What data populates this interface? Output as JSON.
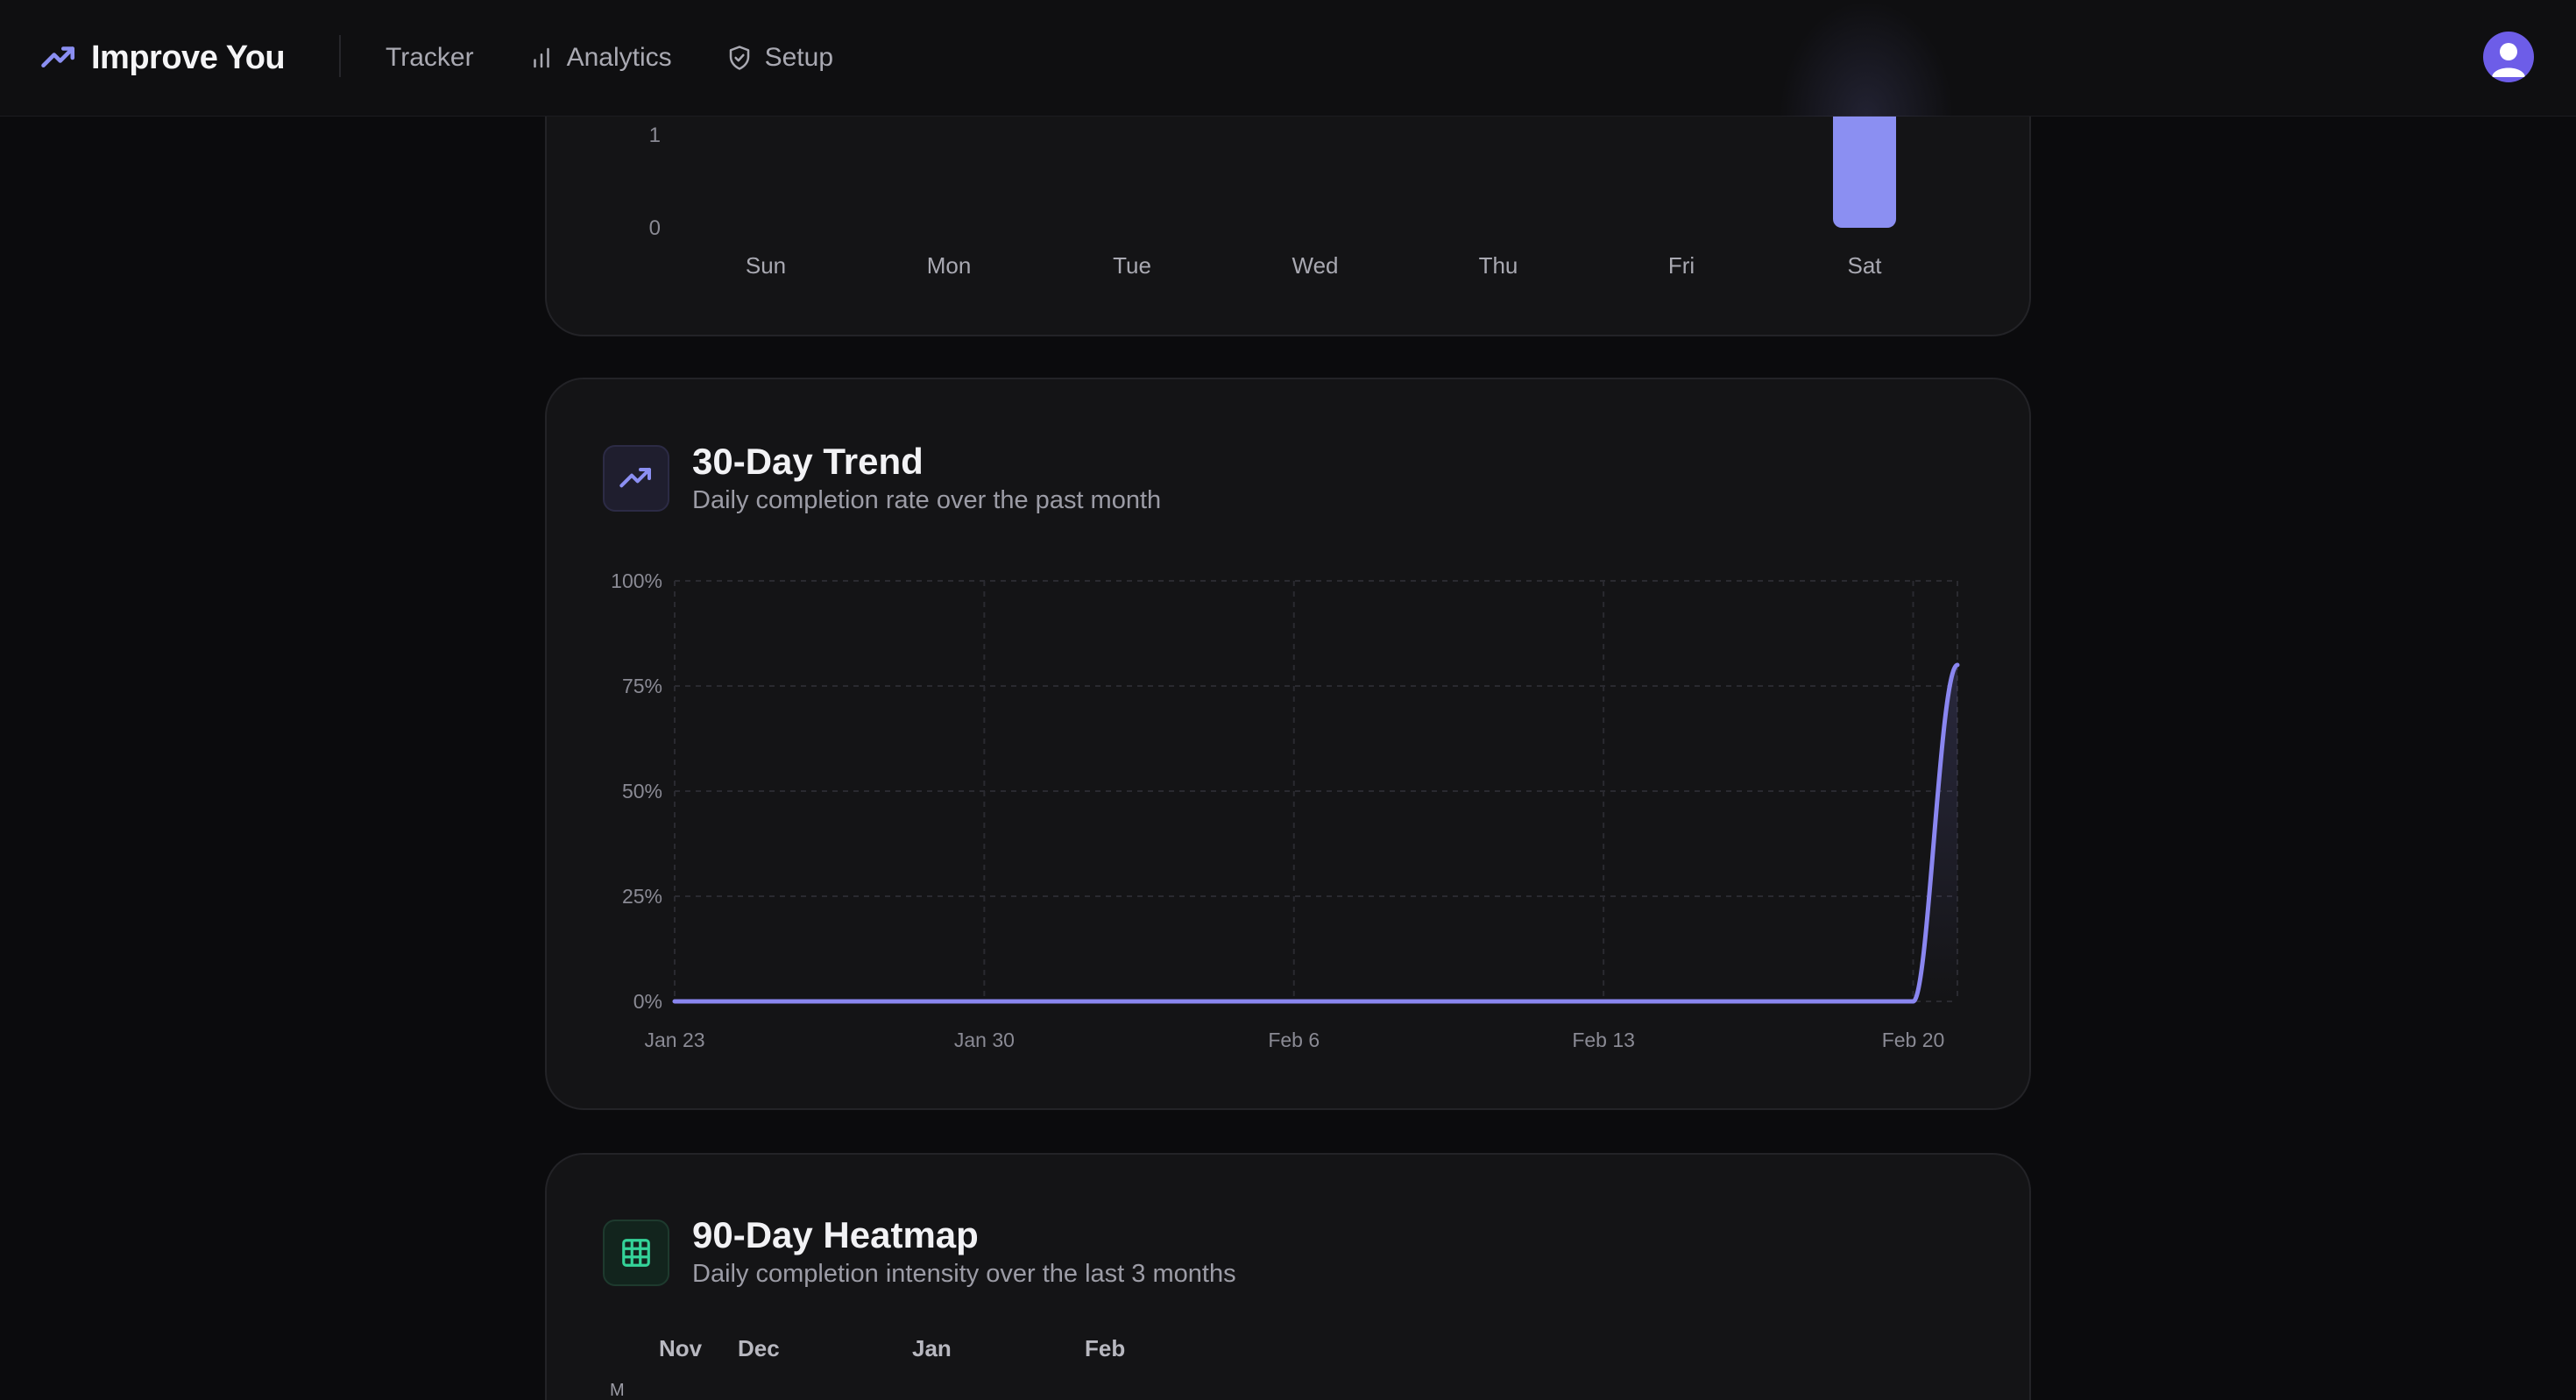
{
  "header": {
    "brand_name": "Improve You",
    "nav": [
      {
        "label": "Tracker",
        "icon": "none"
      },
      {
        "label": "Analytics",
        "icon": "bar-chart-icon"
      },
      {
        "label": "Setup",
        "icon": "shield-check-icon"
      }
    ],
    "avatar": "user-avatar-icon"
  },
  "colors": {
    "accent": "#8b8ff2",
    "line": "#8a86f0",
    "heatmap_green": "#34d399",
    "background": "#0b0b0d",
    "card": "#141416"
  },
  "weekly_chart": {
    "y_ticks": [
      "1",
      "0"
    ],
    "categories": [
      "Sun",
      "Mon",
      "Tue",
      "Wed",
      "Thu",
      "Fri",
      "Sat"
    ]
  },
  "trend": {
    "title": "30-Day Trend",
    "subtitle": "Daily completion rate over the past month",
    "icon": "trending-up-icon",
    "y_ticks": [
      "100%",
      "75%",
      "50%",
      "25%",
      "0%"
    ],
    "x_ticks": [
      "Jan 23",
      "Jan 30",
      "Feb 6",
      "Feb 13",
      "Feb 20"
    ]
  },
  "heatmap": {
    "title": "90-Day Heatmap",
    "subtitle": "Daily completion intensity over the last 3 months",
    "icon": "grid-icon",
    "months": [
      "Nov",
      "Dec",
      "Jan",
      "Feb"
    ],
    "day_label": "M"
  },
  "chart_data": [
    {
      "type": "bar",
      "categories": [
        "Sun",
        "Mon",
        "Tue",
        "Wed",
        "Thu",
        "Fri",
        "Sat"
      ],
      "values": [
        0,
        0,
        0,
        0,
        0,
        0,
        2
      ],
      "ylabel": "",
      "xlabel": ""
    },
    {
      "type": "line",
      "title": "30-Day Trend",
      "x": [
        "Jan 23",
        "Jan 24",
        "Jan 25",
        "Jan 26",
        "Jan 27",
        "Jan 28",
        "Jan 29",
        "Jan 30",
        "Jan 31",
        "Feb 1",
        "Feb 2",
        "Feb 3",
        "Feb 4",
        "Feb 5",
        "Feb 6",
        "Feb 7",
        "Feb 8",
        "Feb 9",
        "Feb 10",
        "Feb 11",
        "Feb 12",
        "Feb 13",
        "Feb 14",
        "Feb 15",
        "Feb 16",
        "Feb 17",
        "Feb 18",
        "Feb 19",
        "Feb 20",
        "Feb 21"
      ],
      "values": [
        0,
        0,
        0,
        0,
        0,
        0,
        0,
        0,
        0,
        0,
        0,
        0,
        0,
        0,
        0,
        0,
        0,
        0,
        0,
        0,
        0,
        0,
        0,
        0,
        0,
        0,
        0,
        0,
        0,
        80
      ],
      "ylim": [
        0,
        100
      ],
      "grid": true
    }
  ]
}
